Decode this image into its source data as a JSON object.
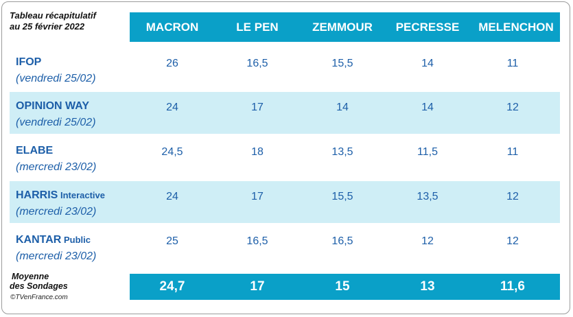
{
  "title": {
    "line1": "Tableau récapitulatif",
    "line2": "au 25 février 2022"
  },
  "columns": [
    "MACRON",
    "LE PEN",
    "ZEMMOUR",
    "PECRESSE",
    "MELENCHON"
  ],
  "rows": [
    {
      "institute": "IFOP",
      "suffix": "",
      "date": "(vendredi 25/02)",
      "values": [
        "26",
        "16,5",
        "15,5",
        "14",
        "11"
      ]
    },
    {
      "institute": "OPINION WAY",
      "suffix": "",
      "date": "(vendredi 25/02)",
      "values": [
        "24",
        "17",
        "14",
        "14",
        "12"
      ]
    },
    {
      "institute": "ELABE",
      "suffix": "",
      "date": "(mercredi 23/02)",
      "values": [
        "24,5",
        "18",
        "13,5",
        "11,5",
        "11"
      ]
    },
    {
      "institute": "HARRIS",
      "suffix": " Interactive",
      "date": "(mercredi 23/02)",
      "values": [
        "24",
        "17",
        "15,5",
        "13,5",
        "12"
      ]
    },
    {
      "institute": "KANTAR",
      "suffix": " Public",
      "date": "(mercredi 23/02)",
      "values": [
        "25",
        "16,5",
        "16,5",
        "12",
        "12"
      ]
    }
  ],
  "average": {
    "label_line1": "Moyenne",
    "label_line2": "des Sondages",
    "values": [
      "24,7",
      "17",
      "15",
      "13",
      "11,6"
    ]
  },
  "copyright": "©TVenFrance.com",
  "colors": {
    "header_bg": "#0aa0c8",
    "shaded_row": "#cfeef6",
    "text_blue": "#1c5ea8"
  }
}
